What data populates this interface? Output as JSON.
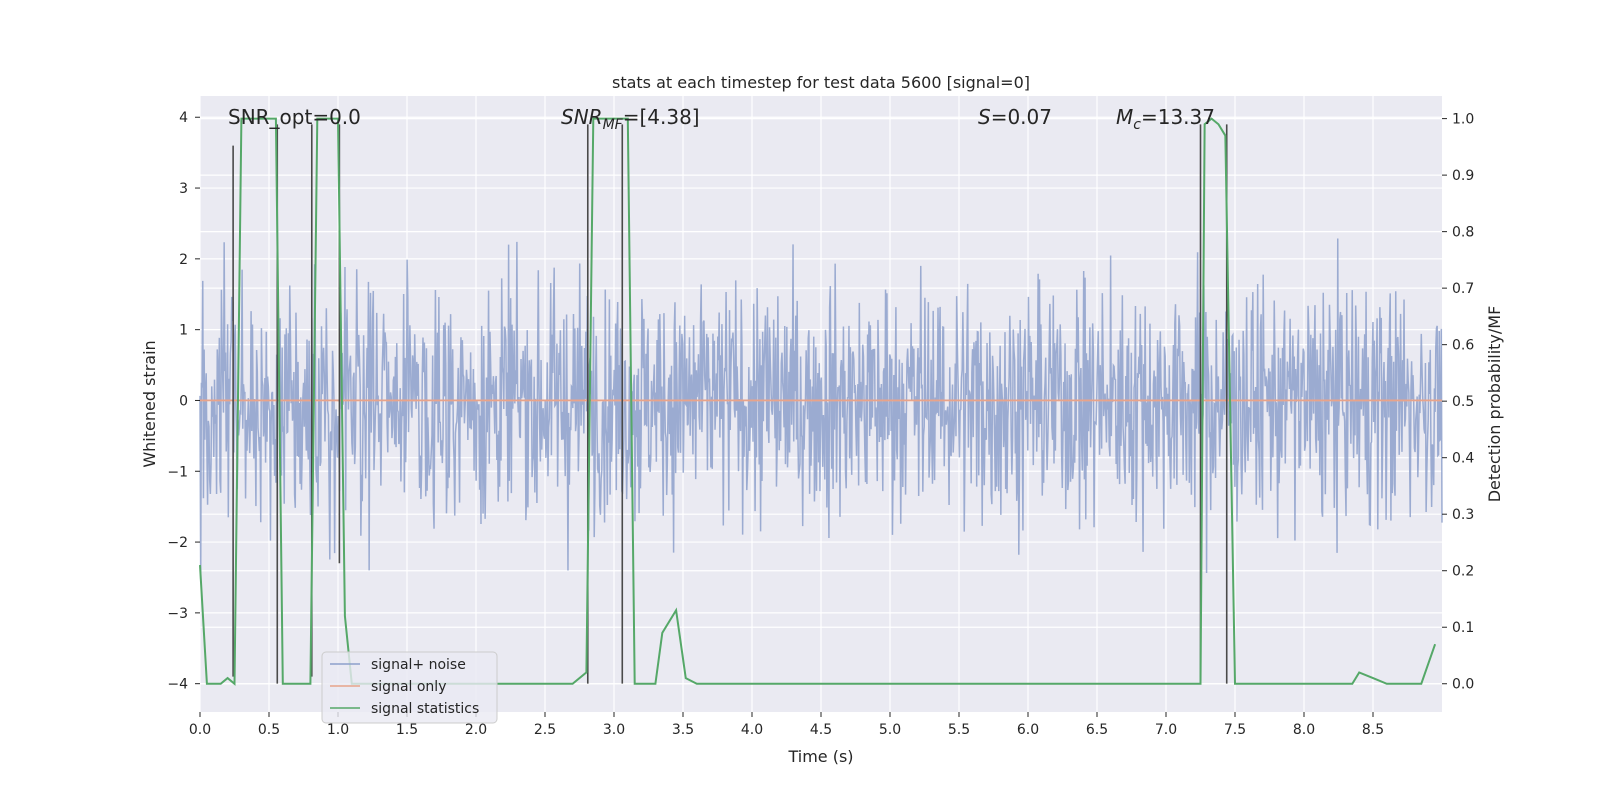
{
  "chart_data": {
    "type": "line",
    "title": "stats at each timestep for test data 5600 [signal=0]",
    "xlabel": "Time (s)",
    "ylabel_left": "Whitened strain",
    "ylabel_right": "Detection probability/MF",
    "xlim": [
      0.0,
      9.0
    ],
    "ylim_left": [
      -4.4,
      4.3
    ],
    "ylim_right": [
      -0.05,
      1.04
    ],
    "grid": true,
    "x_ticks": [
      "0.0",
      "0.5",
      "1.0",
      "1.5",
      "2.0",
      "2.5",
      "3.0",
      "3.5",
      "4.0",
      "4.5",
      "5.0",
      "5.5",
      "6.0",
      "6.5",
      "7.0",
      "7.5",
      "8.0",
      "8.5"
    ],
    "y_ticks_left": [
      "4",
      "3",
      "2",
      "1",
      "0",
      "−1",
      "−2",
      "−3",
      "−4"
    ],
    "y_ticks_right": [
      "1.0",
      "0.9",
      "0.8",
      "0.7",
      "0.6",
      "0.5",
      "0.4",
      "0.3",
      "0.2",
      "0.1",
      "0.0"
    ],
    "annotations": {
      "snr_opt": "SNR_opt=0.0",
      "snr_mf_main": "SNR",
      "snr_mf_sub": "MF",
      "snr_mf_val": "=[4.38]",
      "s_main": "S",
      "s_val": "=0.07",
      "mc_main": "M",
      "mc_sub": "c",
      "mc_val": "=13.37"
    },
    "legend": {
      "placement": "lower-left",
      "entries": [
        {
          "label": "signal+ noise",
          "color": "#8da0cb"
        },
        {
          "label": "signal only",
          "color": "#e8a38a"
        },
        {
          "label": "signal statistics",
          "color": "#55a868"
        }
      ]
    },
    "series": [
      {
        "name": "signal+ noise",
        "axis": "left",
        "color": "#8da0cb",
        "description_of_envelope": "dense noise band roughly ±1.6 with spikes to about ±3.9",
        "noise_seed": 5600,
        "n_points": 1800,
        "y_range": [
          -3.9,
          3.9
        ]
      },
      {
        "name": "signal only",
        "axis": "left",
        "color": "#e8a38a",
        "x": [
          0.0,
          9.0
        ],
        "y": [
          0.0,
          0.0
        ]
      },
      {
        "name": "signal statistics",
        "axis": "right",
        "color": "#55a868",
        "x": [
          0.0,
          0.05,
          0.1,
          0.15,
          0.2,
          0.25,
          0.3,
          0.35,
          0.45,
          0.55,
          0.6,
          0.65,
          0.7,
          0.8,
          0.85,
          0.9,
          1.0,
          1.05,
          1.1,
          1.15,
          1.3,
          2.0,
          2.7,
          2.8,
          2.85,
          2.9,
          3.0,
          3.1,
          3.15,
          3.3,
          3.35,
          3.45,
          3.52,
          3.6,
          4.0,
          5.0,
          6.0,
          6.9,
          7.0,
          7.2,
          7.25,
          7.28,
          7.33,
          7.38,
          7.43,
          7.5,
          7.55,
          8.0,
          8.35,
          8.4,
          8.5,
          8.6,
          8.7,
          8.85,
          8.95
        ],
        "y": [
          0.21,
          0.0,
          0.0,
          0.0,
          0.01,
          0.0,
          1.0,
          1.0,
          1.0,
          1.0,
          0.0,
          0.0,
          0.0,
          0.0,
          1.0,
          1.0,
          1.0,
          0.12,
          0.0,
          0.0,
          0.0,
          0.0,
          0.0,
          0.02,
          1.0,
          1.0,
          1.0,
          1.0,
          0.0,
          0.0,
          0.09,
          0.13,
          0.01,
          0.0,
          0.0,
          0.0,
          0.0,
          0.0,
          0.0,
          0.0,
          0.0,
          0.99,
          1.0,
          0.99,
          0.97,
          0.0,
          0.0,
          0.0,
          0.0,
          0.02,
          0.01,
          0.0,
          0.0,
          0.0,
          0.07
        ]
      }
    ],
    "vertical_markers": [
      {
        "x": 0.24,
        "y_top": 3.6,
        "y_bottom": -3.9
      },
      {
        "x": 0.56,
        "y_top": 3.9,
        "y_bottom": -4.0
      },
      {
        "x": 0.81,
        "y_top": 3.9,
        "y_bottom": -3.9
      },
      {
        "x": 1.01,
        "y_top": 3.9,
        "y_bottom": -2.3
      },
      {
        "x": 2.81,
        "y_top": 3.9,
        "y_bottom": -4.0
      },
      {
        "x": 3.06,
        "y_top": 3.9,
        "y_bottom": -4.0
      },
      {
        "x": 7.25,
        "y_top": 3.9,
        "y_bottom": -4.0
      },
      {
        "x": 7.44,
        "y_top": 3.9,
        "y_bottom": -4.0
      }
    ],
    "colors": {
      "plot_bg": "#eaeaf2",
      "grid": "#ffffff",
      "marker": "#4a4a4a"
    }
  }
}
